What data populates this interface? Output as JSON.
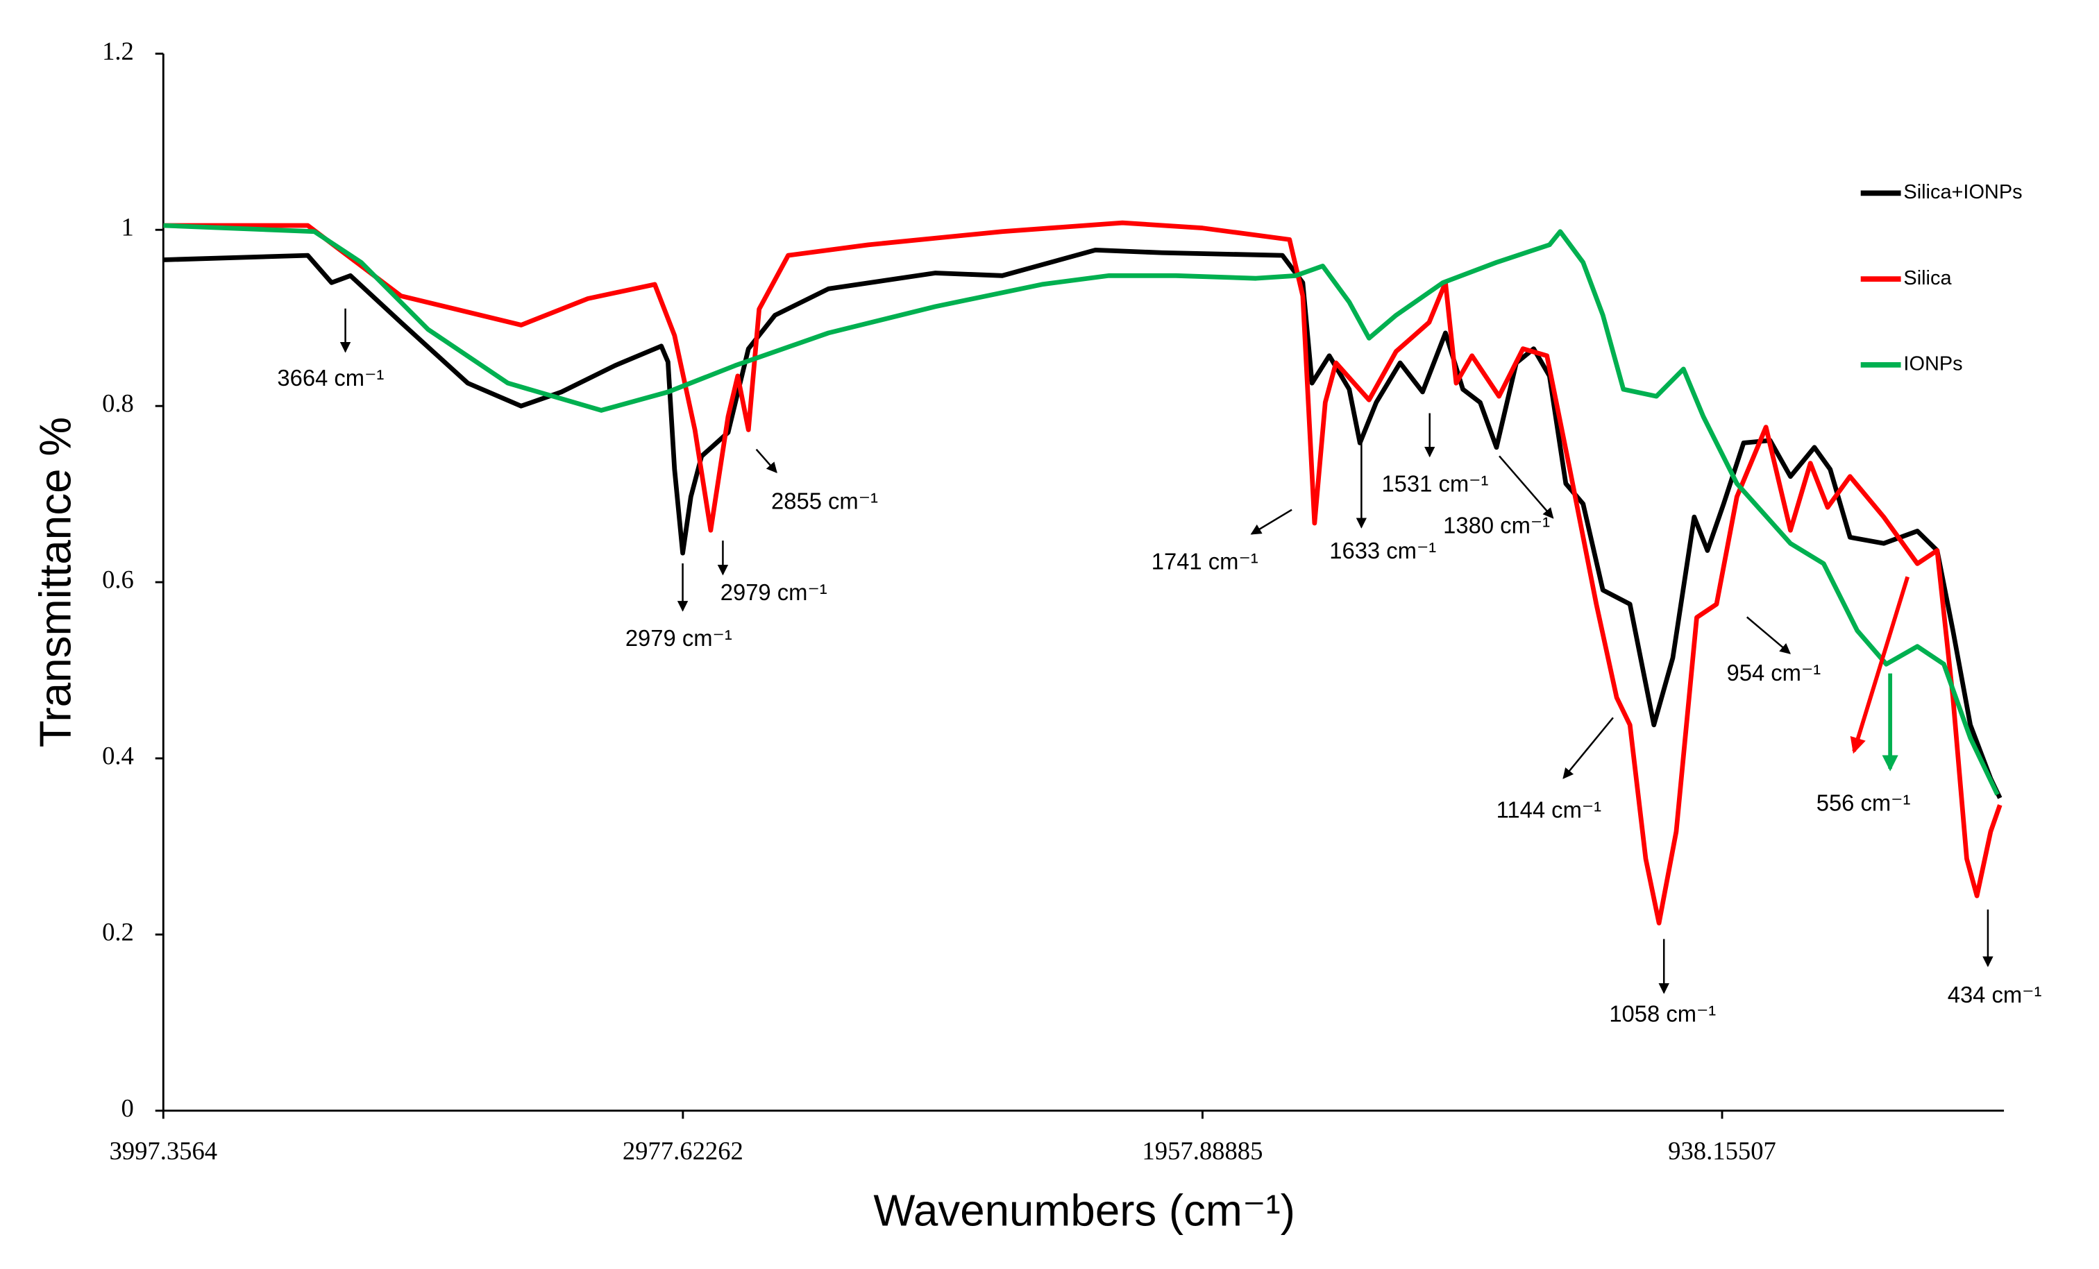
{
  "chart_data": {
    "type": "line",
    "xlabel": "Wavenumbers (cm⁻¹)",
    "ylabel": "Transmittance %",
    "xlim": [
      3997.3564,
      385
    ],
    "xticks": [
      3997.3564,
      2977.62262,
      1957.88885,
      938.15507
    ],
    "ylim": [
      0,
      1.2
    ],
    "yticks": [
      0,
      0.2,
      0.4,
      0.6,
      0.8,
      1,
      1.2
    ],
    "legend": "upper right",
    "series": [
      {
        "name": "Silica+IONPs",
        "color": "#000000",
        "x": [
          3997,
          3714,
          3667,
          3630,
          3531,
          3400,
          3295,
          3216,
          3111,
          3020,
          3007,
          2994,
          2978,
          2962,
          2941,
          2889,
          2849,
          2797,
          2692,
          2482,
          2351,
          2168,
          2037,
          1801,
          1761,
          1743,
          1709,
          1670,
          1649,
          1617,
          1570,
          1526,
          1481,
          1447,
          1413,
          1381,
          1342,
          1308,
          1277,
          1245,
          1211,
          1172,
          1119,
          1072,
          1035,
          993,
          967,
          935,
          896,
          844,
          804,
          757,
          726,
          687,
          621,
          555,
          516,
          485,
          451,
          411,
          393
        ],
        "values": [
          0.966,
          0.971,
          0.94,
          0.948,
          0.895,
          0.826,
          0.8,
          0.816,
          0.846,
          0.868,
          0.85,
          0.728,
          0.633,
          0.697,
          0.743,
          0.77,
          0.865,
          0.903,
          0.933,
          0.951,
          0.948,
          0.977,
          0.974,
          0.971,
          0.94,
          0.826,
          0.857,
          0.819,
          0.758,
          0.804,
          0.849,
          0.816,
          0.883,
          0.819,
          0.804,
          0.753,
          0.849,
          0.865,
          0.834,
          0.712,
          0.689,
          0.591,
          0.575,
          0.438,
          0.514,
          0.674,
          0.636,
          0.689,
          0.758,
          0.761,
          0.72,
          0.753,
          0.728,
          0.651,
          0.644,
          0.658,
          0.636,
          0.545,
          0.438,
          0.377,
          0.355
        ]
      },
      {
        "name": "Silica",
        "color": "#ff0000",
        "x": [
          3997,
          3714,
          3636,
          3531,
          3295,
          3164,
          3033,
          2994,
          2954,
          2923,
          2889,
          2870,
          2849,
          2828,
          2771,
          2614,
          2351,
          2115,
          1958,
          1787,
          1761,
          1738,
          1717,
          1696,
          1631,
          1578,
          1513,
          1481,
          1460,
          1429,
          1376,
          1329,
          1282,
          1237,
          1185,
          1145,
          1119,
          1088,
          1062,
          1028,
          988,
          949,
          909,
          852,
          804,
          765,
          731,
          687,
          621,
          555,
          516,
          485,
          458,
          438,
          411,
          393
        ],
        "values": [
          1.005,
          1.005,
          0.971,
          0.925,
          0.892,
          0.922,
          0.938,
          0.88,
          0.773,
          0.659,
          0.788,
          0.834,
          0.773,
          0.91,
          0.971,
          0.983,
          0.998,
          1.008,
          1.002,
          0.989,
          0.925,
          0.667,
          0.804,
          0.849,
          0.807,
          0.862,
          0.895,
          0.94,
          0.826,
          0.857,
          0.811,
          0.865,
          0.857,
          0.728,
          0.575,
          0.469,
          0.438,
          0.286,
          0.213,
          0.317,
          0.56,
          0.575,
          0.697,
          0.776,
          0.659,
          0.735,
          0.685,
          0.72,
          0.674,
          0.621,
          0.636,
          0.469,
          0.286,
          0.244,
          0.317,
          0.347
        ]
      },
      {
        "name": "IONPs",
        "color": "#00b050",
        "x": [
          3997,
          3701,
          3609,
          3478,
          3321,
          3138,
          3007,
          2875,
          2692,
          2482,
          2273,
          2142,
          2010,
          1853,
          1775,
          1722,
          1670,
          1631,
          1578,
          1486,
          1381,
          1277,
          1256,
          1211,
          1172,
          1132,
          1067,
          1014,
          975,
          909,
          804,
          739,
          673,
          616,
          555,
          503,
          451,
          398
        ],
        "values": [
          1.005,
          0.998,
          0.963,
          0.887,
          0.826,
          0.795,
          0.816,
          0.846,
          0.883,
          0.913,
          0.938,
          0.948,
          0.948,
          0.945,
          0.948,
          0.959,
          0.918,
          0.877,
          0.903,
          0.94,
          0.963,
          0.983,
          0.998,
          0.963,
          0.903,
          0.819,
          0.811,
          0.842,
          0.788,
          0.712,
          0.644,
          0.621,
          0.545,
          0.507,
          0.527,
          0.507,
          0.423,
          0.359
        ]
      }
    ],
    "annotations": [
      "3664 cm⁻¹",
      "2979 cm⁻¹",
      "2979 cm⁻¹",
      "2855 cm⁻¹",
      "1741 cm⁻¹",
      "1633 cm⁻¹",
      "1531 cm⁻¹",
      "1380 cm⁻¹",
      "1144 cm⁻¹",
      "1058 cm⁻¹",
      "954 cm⁻¹",
      "556 cm⁻¹",
      "434 cm⁻¹"
    ]
  }
}
